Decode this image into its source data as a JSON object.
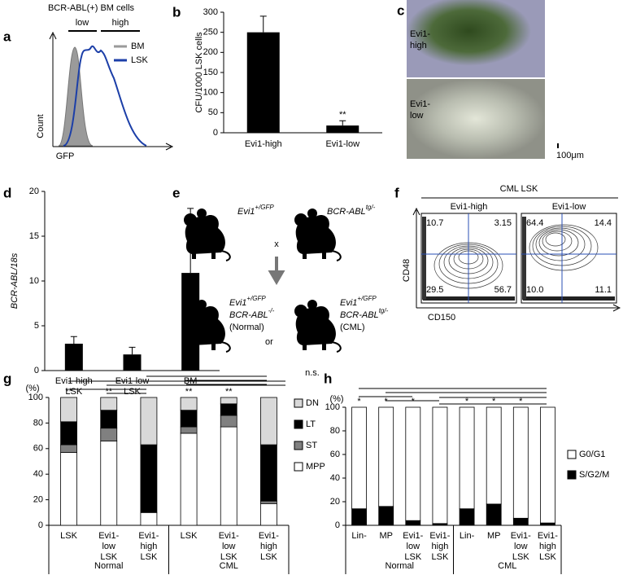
{
  "panel_labels": [
    "a",
    "b",
    "c",
    "d",
    "e",
    "f",
    "g",
    "h"
  ],
  "histogram_panel": {
    "title": "BCR-ABL(+) BM cells",
    "gates": [
      "low",
      "high"
    ],
    "legend": [
      "BM",
      "LSK"
    ],
    "xlabel": "GFP",
    "ylabel": "Count"
  },
  "images": {
    "labels": [
      [
        "Evi1-",
        "high"
      ],
      [
        "Evi1-",
        "low"
      ]
    ],
    "scale": "100μm"
  },
  "cross": {
    "parents": [
      {
        "base": "Evi1",
        "sup": "+/GFP"
      },
      {
        "base": "BCR-ABL",
        "sup": "tg/-"
      }
    ],
    "cross_symbol": "x",
    "or": "or",
    "offspring": [
      {
        "lines": [
          {
            "base": "Evi1",
            "sup": "+/GFP"
          },
          {
            "base": "BCR-ABL",
            "sup": "-/-"
          }
        ],
        "note": "(Normal)"
      },
      {
        "lines": [
          {
            "base": "Evi1",
            "sup": "+/GFP"
          },
          {
            "base": "BCR-ABL",
            "sup": "tg/-"
          }
        ],
        "note": "(CML)"
      }
    ]
  },
  "flow": {
    "title": "CML LSK",
    "xlabel": "CD150",
    "ylabel": "CD48",
    "plots": [
      {
        "name": "Evi1-high",
        "quadrants": [
          "10.7",
          "3.15",
          "29.5",
          "56.7"
        ]
      },
      {
        "name": "Evi1-low",
        "quadrants": [
          "64.4",
          "14.4",
          "10.0",
          "11.1"
        ]
      }
    ]
  },
  "chart_data": [
    {
      "type": "bar",
      "ylabel": "CFU/1000 LSK cells",
      "categories": [
        "Evi1-high",
        "Evi1-low"
      ],
      "values": [
        250,
        18
      ],
      "errors": [
        40,
        12
      ],
      "significance": [
        null,
        "**"
      ],
      "color": "#000000",
      "ylim": [
        0,
        300
      ],
      "yticks": [
        0,
        50,
        100,
        150,
        200,
        250,
        300
      ]
    },
    {
      "type": "bar",
      "ylabel": "BCR-ABL/18s",
      "categories": [
        [
          "Evi1-high",
          "LSK"
        ],
        [
          "Evi1-low",
          "LSK"
        ],
        [
          "BM"
        ]
      ],
      "values": [
        3.0,
        1.8,
        10.9
      ],
      "errors": [
        0.8,
        0.8,
        7.2
      ],
      "color": "#000000",
      "ylim": [
        0,
        20
      ],
      "yticks": [
        0,
        5,
        10,
        15,
        20
      ]
    },
    {
      "type": "stacked_bar",
      "ylabel": "(%)",
      "categories": [
        [
          "LSK"
        ],
        [
          "Evi1-",
          "low",
          "LSK"
        ],
        [
          "Evi1-",
          "high",
          "LSK"
        ],
        [
          "LSK"
        ],
        [
          "Evi1-",
          "low",
          "LSK"
        ],
        [
          "Evi1-",
          "high",
          "LSK"
        ]
      ],
      "groups": [
        "Normal",
        "CML"
      ],
      "significance": [
        "**",
        "**",
        null,
        "**",
        "**",
        null
      ],
      "annotation": "n.s.",
      "series": [
        {
          "name": "MPP",
          "color": "#ffffff",
          "values": [
            57,
            66,
            10,
            72,
            77,
            17
          ]
        },
        {
          "name": "ST",
          "color": "#808080",
          "values": [
            6,
            10,
            0,
            5,
            9,
            2
          ]
        },
        {
          "name": "LT",
          "color": "#000000",
          "values": [
            18,
            14,
            53,
            13,
            9,
            44
          ]
        },
        {
          "name": "DN",
          "color": "#d9d9d9",
          "values": [
            19,
            10,
            37,
            10,
            5,
            37
          ]
        }
      ],
      "ylim": [
        0,
        100
      ],
      "yticks": [
        0,
        20,
        40,
        60,
        80,
        100
      ]
    },
    {
      "type": "stacked_bar",
      "ylabel": "(%)",
      "categories": [
        [
          "Lin-"
        ],
        [
          "MP"
        ],
        [
          "Evi1-",
          "low",
          "LSK"
        ],
        [
          "Evi1-",
          "high",
          "LSK"
        ],
        [
          "Lin-"
        ],
        [
          "MP"
        ],
        [
          "Evi1-",
          "low",
          "LSK"
        ],
        [
          "Evi1-",
          "high",
          "LSK"
        ]
      ],
      "groups": [
        "Normal",
        "CML"
      ],
      "significance": [
        "*",
        "*",
        "*",
        null,
        "*",
        "*",
        "*",
        null
      ],
      "series": [
        {
          "name": "S/G2/M",
          "color": "#000000",
          "values": [
            14,
            16,
            4,
            1.5,
            14,
            18,
            6,
            2
          ],
          "errors": [
            3,
            0.5,
            1,
            0.5,
            3,
            4,
            2,
            2
          ]
        },
        {
          "name": "G0/G1",
          "color": "#ffffff",
          "values": [
            86,
            84,
            96,
            98.5,
            86,
            82,
            94,
            98
          ]
        }
      ],
      "ylim": [
        0,
        100
      ],
      "yticks": [
        0,
        20,
        40,
        60,
        80,
        100
      ]
    }
  ]
}
